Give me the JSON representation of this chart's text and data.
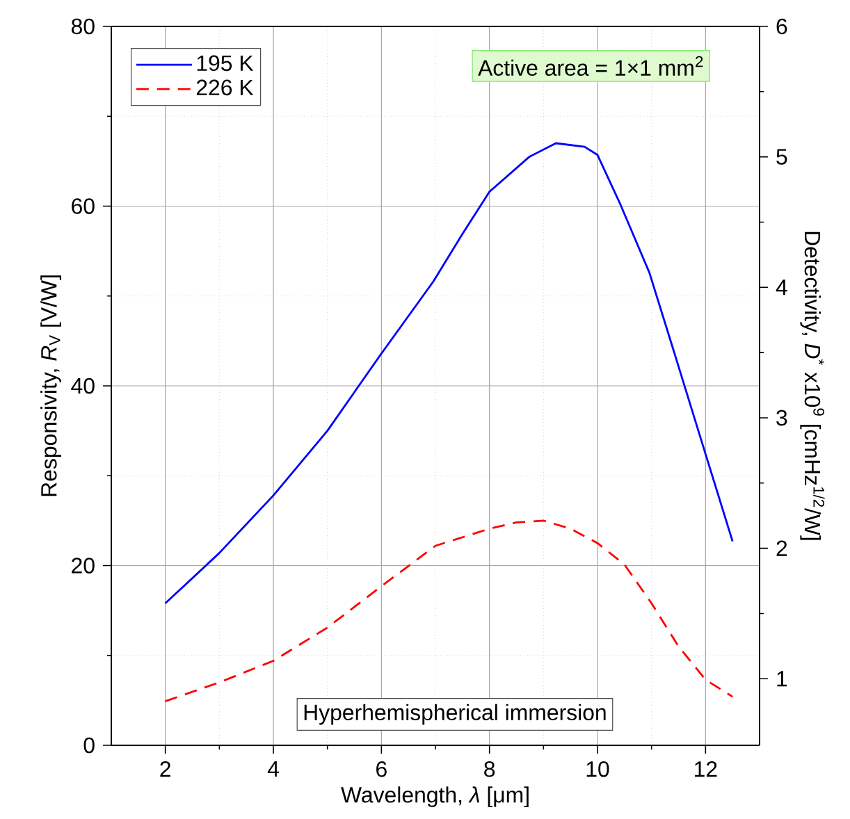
{
  "chart_data": {
    "type": "line",
    "xlabel": "Wavelength, *λ* [μm]",
    "ylabel": "Responsivity, *R*$_{V}$ [V/W]",
    "y2label": "Detectivity, *D*$^{*}$ x10$^{9}$ [cmHz$^{1/2}$/W]",
    "xlim": [
      1,
      13
    ],
    "xticks": [
      2,
      4,
      6,
      8,
      10,
      12
    ],
    "ylim": [
      0,
      80
    ],
    "yticks": [
      0,
      20,
      40,
      60,
      80
    ],
    "y2lim": [
      0.49,
      6
    ],
    "y2ticks": [
      1,
      2,
      3,
      4,
      5,
      6
    ],
    "grid": true,
    "legend": "top left",
    "annotations": [
      "Active area = 1×1 mm$^{2}$",
      "Hyperhemispherical immersion"
    ],
    "series": [
      {
        "name": "195 K",
        "color": "#0000ff",
        "line_style": "solid",
        "x": [
          2,
          3,
          4,
          5,
          6,
          6.96,
          7.5,
          8,
          8.74,
          9.23,
          9.76,
          10,
          10.43,
          10.96,
          11.4,
          12,
          12.5
        ],
        "values": [
          15.8,
          21.4,
          27.8,
          35.0,
          43.6,
          51.6,
          56.9,
          61.6,
          65.5,
          67.0,
          66.6,
          65.7,
          60.1,
          52.6,
          44.1,
          32.4,
          22.7
        ]
      },
      {
        "name": "226 K",
        "color": "#ff0000",
        "line_style": "dashed",
        "x": [
          2,
          3,
          4,
          5,
          6,
          7,
          8,
          8.5,
          9,
          9.5,
          10,
          10.5,
          11,
          11.5,
          12,
          12.5
        ],
        "values": [
          4.9,
          7.0,
          9.4,
          13.1,
          17.7,
          22.2,
          24.1,
          24.8,
          25.0,
          24.1,
          22.5,
          20.1,
          15.8,
          11.0,
          7.3,
          5.4
        ]
      }
    ]
  }
}
